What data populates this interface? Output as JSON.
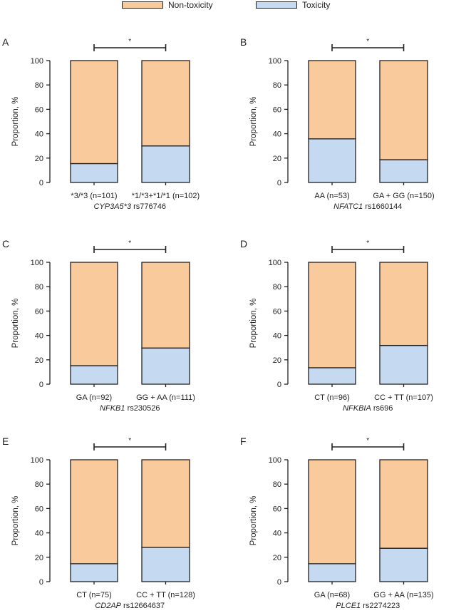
{
  "legend": {
    "items": [
      {
        "label": "Non-toxicity",
        "color": "#f9cb9c"
      },
      {
        "label": "Toxicity",
        "color": "#c5d9f1"
      }
    ]
  },
  "chart_data": [
    {
      "type": "bar",
      "stacked": true,
      "panel_label": "A",
      "ylabel": "Proportion, %",
      "ylim": [
        0,
        100
      ],
      "yticks": [
        0,
        20,
        40,
        60,
        80,
        100
      ],
      "categories": [
        "*3/*3 (n=101)",
        "*1/*3+*1/*1 (n=102)"
      ],
      "xlabel_gene": "CYP3A5*3",
      "xlabel_snp": "rs776746",
      "series": [
        {
          "name": "Toxicity",
          "values": [
            15.5,
            30
          ]
        },
        {
          "name": "Non-toxicity",
          "values": [
            84.5,
            70
          ]
        }
      ],
      "significance": "*"
    },
    {
      "type": "bar",
      "stacked": true,
      "panel_label": "B",
      "ylabel": "Proportion, %",
      "ylim": [
        0,
        100
      ],
      "yticks": [
        0,
        20,
        40,
        60,
        80,
        100
      ],
      "categories": [
        "AA (n=53)",
        "GA + GG (n=150)"
      ],
      "xlabel_gene": "NFATC1",
      "xlabel_snp": "rs1660144",
      "series": [
        {
          "name": "Toxicity",
          "values": [
            35.8,
            18.7
          ]
        },
        {
          "name": "Non-toxicity",
          "values": [
            64.2,
            81.3
          ]
        }
      ],
      "significance": "*"
    },
    {
      "type": "bar",
      "stacked": true,
      "panel_label": "C",
      "ylabel": "Proportion, %",
      "ylim": [
        0,
        100
      ],
      "yticks": [
        0,
        20,
        40,
        60,
        80,
        100
      ],
      "categories": [
        "GA (n=92)",
        "GG + AA (n=111)"
      ],
      "xlabel_gene": "NFKB1",
      "xlabel_snp": "rs230526",
      "series": [
        {
          "name": "Toxicity",
          "values": [
            15.2,
            29.7
          ]
        },
        {
          "name": "Non-toxicity",
          "values": [
            84.8,
            70.3
          ]
        }
      ],
      "significance": "*"
    },
    {
      "type": "bar",
      "stacked": true,
      "panel_label": "D",
      "ylabel": "Proportion, %",
      "ylim": [
        0,
        100
      ],
      "yticks": [
        0,
        20,
        40,
        60,
        80,
        100
      ],
      "categories": [
        "CT (n=96)",
        "CC + TT (n=107)"
      ],
      "xlabel_gene": "NFKBIA",
      "xlabel_snp": "rs696",
      "series": [
        {
          "name": "Toxicity",
          "values": [
            13.5,
            31.8
          ]
        },
        {
          "name": "Non-toxicity",
          "values": [
            86.5,
            68.2
          ]
        }
      ],
      "significance": "*"
    },
    {
      "type": "bar",
      "stacked": true,
      "panel_label": "E",
      "ylabel": "Proportion, %",
      "ylim": [
        0,
        100
      ],
      "yticks": [
        0,
        20,
        40,
        60,
        80,
        100
      ],
      "categories": [
        "CT (n=75)",
        "CC + TT (n=128)"
      ],
      "xlabel_gene": "CD2AP",
      "xlabel_snp": "rs12664637",
      "series": [
        {
          "name": "Toxicity",
          "values": [
            14.7,
            28.1
          ]
        },
        {
          "name": "Non-toxicity",
          "values": [
            85.3,
            71.9
          ]
        }
      ],
      "significance": "*"
    },
    {
      "type": "bar",
      "stacked": true,
      "panel_label": "F",
      "ylabel": "Proportion, %",
      "ylim": [
        0,
        100
      ],
      "yticks": [
        0,
        20,
        40,
        60,
        80,
        100
      ],
      "categories": [
        "GA (n=68)",
        "GG + AA (n=135)"
      ],
      "xlabel_gene": "PLCE1",
      "xlabel_snp": "rs2274223",
      "series": [
        {
          "name": "Toxicity",
          "values": [
            14.7,
            27.4
          ]
        },
        {
          "name": "Non-toxicity",
          "values": [
            85.3,
            72.6
          ]
        }
      ],
      "significance": "*"
    }
  ]
}
